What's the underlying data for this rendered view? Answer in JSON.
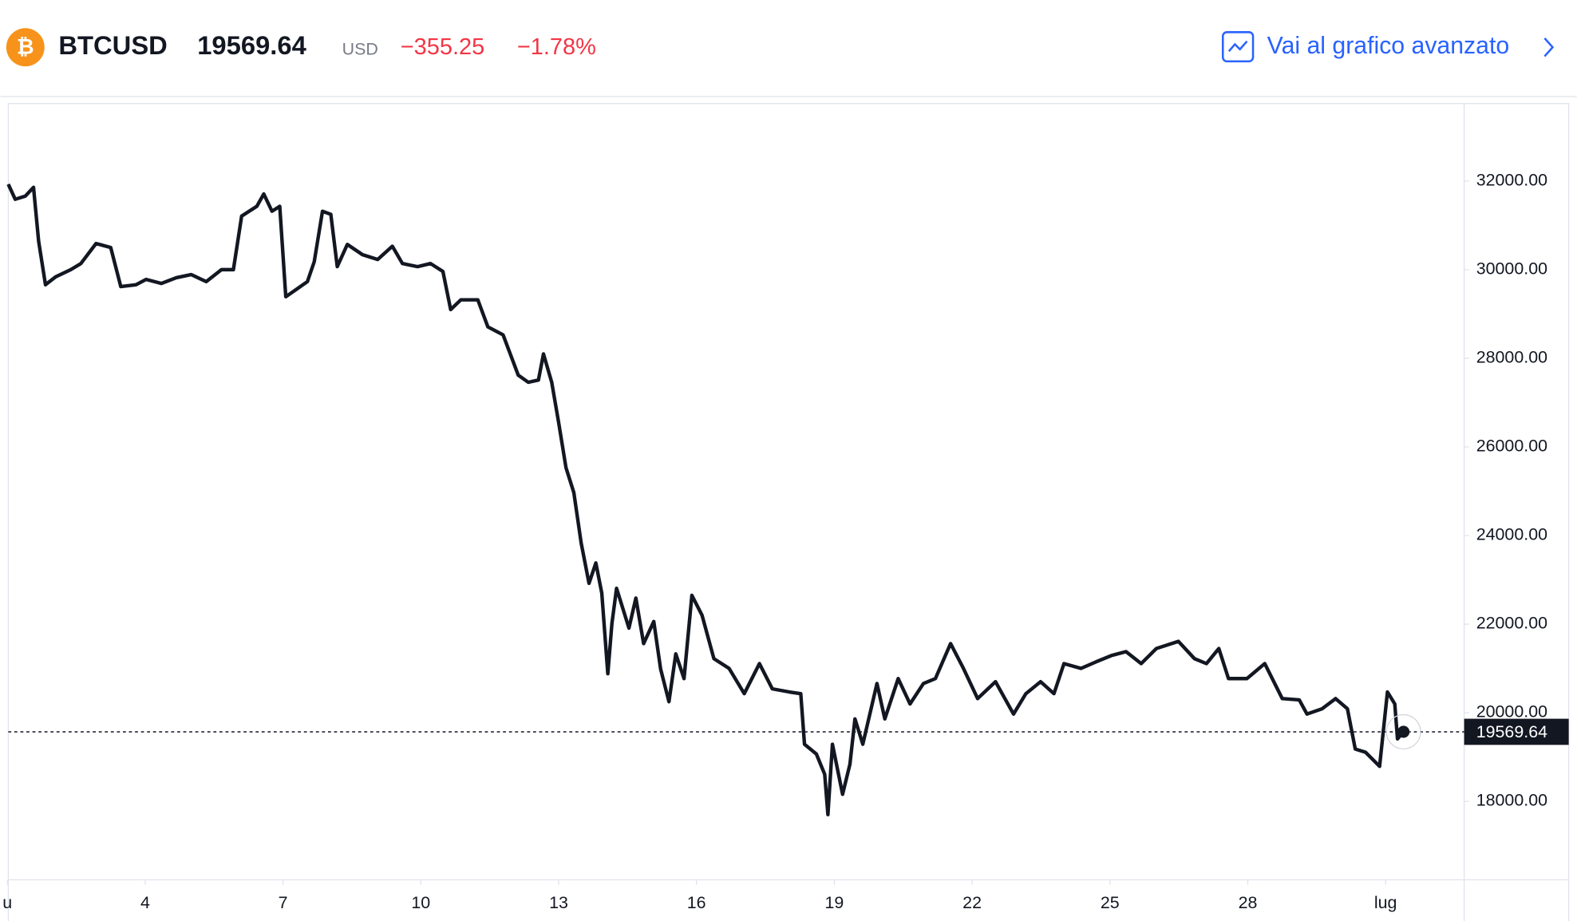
{
  "header": {
    "symbol": "BTCUSD",
    "price": "19569.64",
    "currency": "USD",
    "change": "−355.25",
    "change_percent": "−1.78%",
    "link": "Vai al grafico avanzato"
  },
  "chart_data": {
    "type": "line",
    "color": "#131722",
    "x": [
      1.02,
      1.17,
      1.39,
      1.57,
      1.68,
      1.83,
      2.05,
      2.38,
      2.6,
      2.93,
      3.25,
      3.47,
      3.8,
      4.02,
      4.35,
      4.68,
      5.0,
      5.33,
      5.66,
      5.92,
      6.1,
      6.43,
      6.58,
      6.76,
      6.93,
      7.06,
      7.31,
      7.53,
      7.68,
      7.86,
      8.04,
      8.18,
      8.4,
      8.73,
      9.06,
      9.38,
      9.6,
      9.93,
      10.21,
      10.48,
      10.65,
      10.87,
      11.24,
      11.46,
      11.79,
      12.12,
      12.34,
      12.56,
      12.67,
      12.85,
      13.0,
      13.16,
      13.33,
      13.49,
      13.66,
      13.81,
      13.94,
      14.07,
      14.16,
      14.26,
      14.53,
      14.68,
      14.85,
      15.07,
      15.22,
      15.4,
      15.55,
      15.73,
      15.9,
      16.12,
      16.38,
      16.71,
      17.04,
      17.37,
      17.65,
      18.02,
      18.27,
      18.35,
      18.61,
      18.79,
      18.86,
      18.96,
      19.18,
      19.34,
      19.45,
      19.62,
      19.93,
      20.1,
      20.39,
      20.65,
      20.94,
      21.2,
      21.53,
      21.81,
      22.12,
      22.51,
      22.9,
      23.17,
      23.49,
      23.78,
      24.0,
      24.37,
      24.7,
      25.03,
      25.35,
      25.68,
      26.01,
      26.49,
      26.84,
      27.1,
      27.37,
      27.58,
      27.98,
      28.37,
      28.75,
      29.12,
      29.29,
      29.62,
      29.91,
      30.17,
      30.34,
      30.56,
      30.87,
      31.04,
      31.2,
      31.26,
      31.39
    ],
    "values": [
      31930,
      31590,
      31660,
      31860,
      30640,
      29660,
      29840,
      30000,
      30140,
      30590,
      30500,
      29620,
      29660,
      29780,
      29690,
      29820,
      29890,
      29730,
      30000,
      30000,
      31210,
      31430,
      31710,
      31320,
      31430,
      29390,
      29570,
      29730,
      30180,
      31320,
      31250,
      30070,
      30570,
      30340,
      30230,
      30530,
      30140,
      30070,
      30140,
      29960,
      29100,
      29320,
      29320,
      28710,
      28530,
      27620,
      27460,
      27510,
      28100,
      27460,
      26550,
      25530,
      24970,
      23830,
      22920,
      23380,
      22700,
      20880,
      22020,
      22810,
      21910,
      22590,
      21560,
      22060,
      20990,
      20250,
      21330,
      20770,
      22650,
      22200,
      21220,
      21000,
      20430,
      21110,
      20540,
      20470,
      20430,
      19290,
      19070,
      18610,
      17700,
      19290,
      18160,
      18840,
      19860,
      19290,
      20660,
      19860,
      20770,
      20200,
      20660,
      20770,
      21560,
      21000,
      20320,
      20700,
      19970,
      20430,
      20700,
      20430,
      21110,
      21000,
      21150,
      21290,
      21380,
      21110,
      21450,
      21610,
      21220,
      21110,
      21450,
      20770,
      20770,
      21110,
      20320,
      20290,
      19970,
      20090,
      20320,
      20090,
      19180,
      19110,
      18790,
      20470,
      20200,
      19410,
      19569.64
    ],
    "last_value": 19569.64,
    "xlim": [
      1.02,
      32.71
    ],
    "xticks": [
      {
        "value": 1,
        "label": "u"
      },
      4,
      7,
      10,
      13,
      16,
      19,
      22,
      25,
      28,
      {
        "value": 31,
        "label": "lug"
      }
    ],
    "ylim": [
      16230,
      33750
    ],
    "yticks": [
      {
        "value": 18000,
        "label": "18000.00"
      },
      {
        "value": 20000,
        "label": "20000.00"
      },
      {
        "value": 22000,
        "label": "22000.00"
      },
      {
        "value": 24000,
        "label": "24000.00"
      },
      {
        "value": 26000,
        "label": "26000.00"
      },
      {
        "value": 28000,
        "label": "28000.00"
      },
      {
        "value": 30000,
        "label": "30000.00"
      },
      {
        "value": 32000,
        "label": "32000.00"
      }
    ]
  }
}
